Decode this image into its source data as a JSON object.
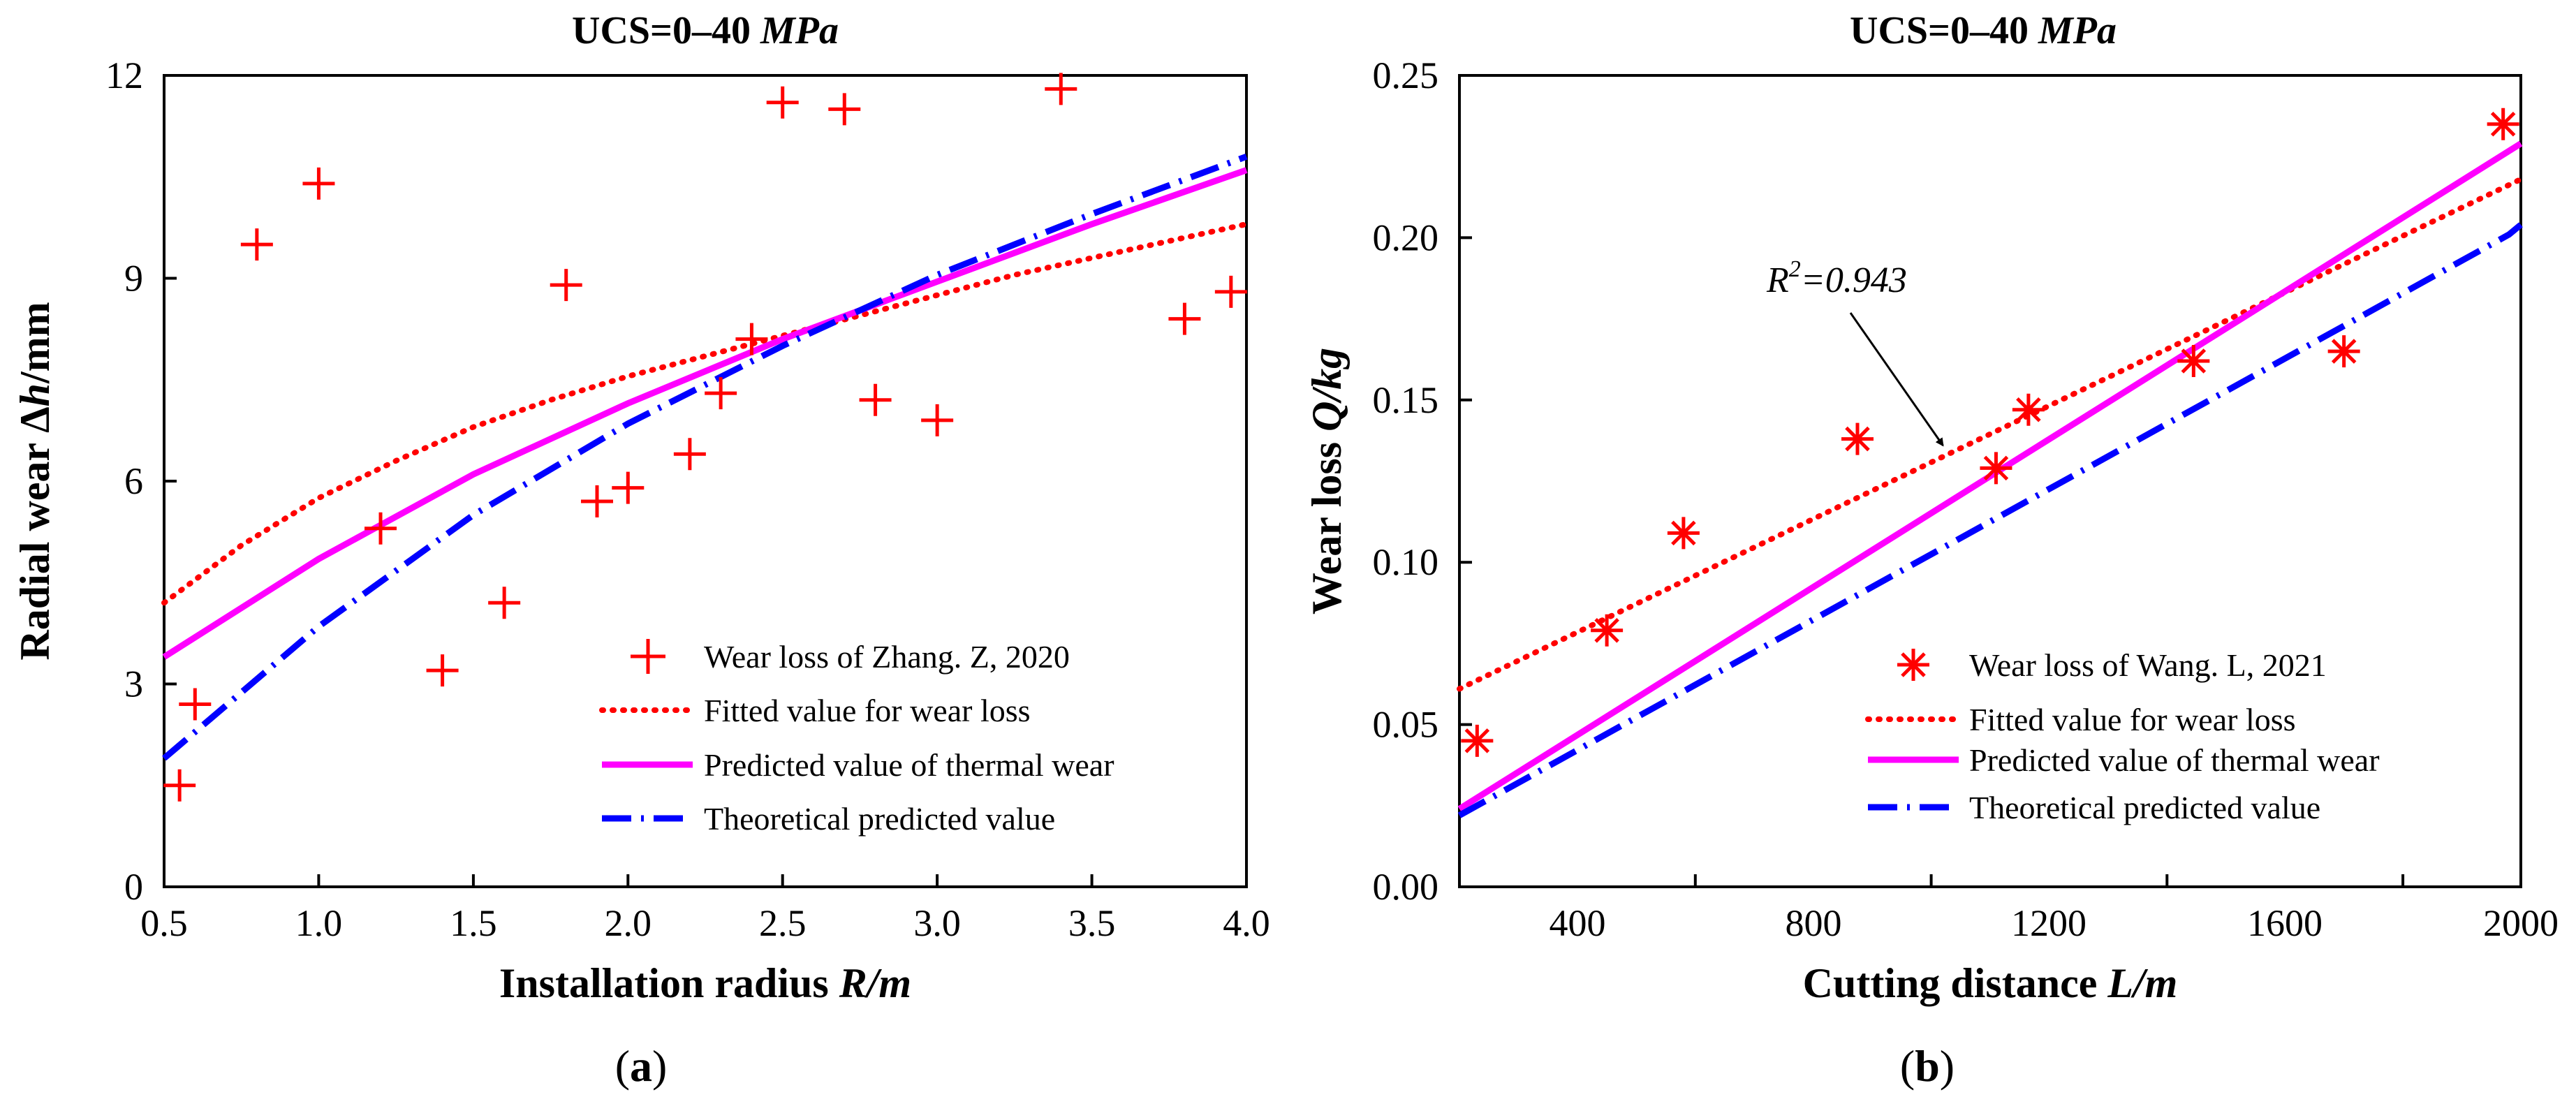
{
  "chart_data": [
    {
      "id": "a",
      "type": "scatter",
      "panel_label": "a",
      "title_prefix": "UCS=0–40 ",
      "title_unit": "MPa",
      "xlabel_main": "Installation radius",
      "xlabel_var": "R/m",
      "ylabel_main": "Radial wear Δ",
      "ylabel_var": "h",
      "ylabel_unit": "/mm",
      "xlim": [
        0.5,
        4.0
      ],
      "ylim": [
        0,
        12
      ],
      "xticks": [
        0.5,
        1.0,
        1.5,
        2.0,
        2.5,
        3.0,
        3.5,
        4.0
      ],
      "xtick_labels": [
        "0.5",
        "1.0",
        "1.5",
        "2.0",
        "2.5",
        "3.0",
        "3.5",
        "4.0"
      ],
      "yticks": [
        0,
        3,
        6,
        9,
        12
      ],
      "ytick_labels": [
        "0",
        "3",
        "6",
        "9",
        "12"
      ],
      "legend_position": "bottom-right",
      "scatter": {
        "name": "Wear loss of Zhang. Z, 2020",
        "marker": "plus",
        "color": "#ff0000",
        "x": [
          0.55,
          0.6,
          0.8,
          1.0,
          1.2,
          1.4,
          1.6,
          1.8,
          1.9,
          2.0,
          2.2,
          2.3,
          2.4,
          2.5,
          2.7,
          2.8,
          3.0,
          3.4,
          3.8,
          3.95
        ],
        "y": [
          1.5,
          2.7,
          9.5,
          10.4,
          5.3,
          3.2,
          4.2,
          8.9,
          5.7,
          5.9,
          6.4,
          7.3,
          8.1,
          11.6,
          11.5,
          7.2,
          6.9,
          11.8,
          8.4,
          8.8
        ]
      },
      "series": [
        {
          "name": "Fitted value for wear loss",
          "style": "dotted",
          "color": "#ff0000",
          "x": [
            0.5,
            0.75,
            1.0,
            1.25,
            1.5,
            1.75,
            2.0,
            2.25,
            2.5,
            2.75,
            3.0,
            3.25,
            3.5,
            3.75,
            4.0
          ],
          "y": [
            4.2,
            5.05,
            5.75,
            6.3,
            6.8,
            7.2,
            7.55,
            7.85,
            8.15,
            8.45,
            8.75,
            9.05,
            9.3,
            9.55,
            9.8
          ]
        },
        {
          "name": "Predicted value of thermal wear",
          "style": "solid",
          "color": "#ff00ff",
          "x": [
            0.5,
            1.0,
            1.5,
            2.0,
            2.5,
            3.0,
            3.5,
            4.0
          ],
          "y": [
            3.4,
            4.85,
            6.1,
            7.15,
            8.1,
            8.95,
            9.8,
            10.6
          ]
        },
        {
          "name": "Theoretical predicted value",
          "style": "dashdot",
          "color": "#0000ff",
          "x": [
            0.5,
            1.0,
            1.5,
            2.0,
            2.5,
            3.0,
            3.5,
            4.0
          ],
          "y": [
            1.9,
            3.85,
            5.5,
            6.85,
            8.0,
            9.05,
            9.95,
            10.8
          ]
        }
      ]
    },
    {
      "id": "b",
      "type": "scatter",
      "panel_label": "b",
      "title_prefix": "UCS=0–40 ",
      "title_unit": "MPa",
      "xlabel_main": "Cutting distance",
      "xlabel_var": "L/m",
      "ylabel_main": "Wear loss",
      "ylabel_var": "Q/kg",
      "xlim": [
        200,
        2000
      ],
      "ylim": [
        0,
        0.25
      ],
      "xticks": [
        400,
        800,
        1200,
        1600,
        2000
      ],
      "xtick_labels": [
        "400",
        "800",
        "1200",
        "1600",
        "2000"
      ],
      "yticks": [
        0,
        0.05,
        0.1,
        0.15,
        0.2,
        0.25
      ],
      "ytick_labels": [
        "0.00",
        "0.05",
        "0.10",
        "0.15",
        "0.20",
        "0.25"
      ],
      "legend_position": "bottom-right",
      "annotation": {
        "text_prefix": "R",
        "text_sup": "2",
        "text_suffix": "=0.943",
        "target_x": 1020,
        "target_y": 0.136
      },
      "scatter": {
        "name": "Wear loss of Wang. L, 2021",
        "marker": "asterisk",
        "color": "#ff0000",
        "x": [
          230,
          450,
          580,
          875,
          1110,
          1165,
          1445,
          1700,
          1970
        ],
        "y": [
          0.045,
          0.079,
          0.109,
          0.138,
          0.129,
          0.147,
          0.162,
          0.165,
          0.235
        ]
      },
      "series": [
        {
          "name": "Fitted value for wear loss",
          "style": "dotted",
          "color": "#ff0000",
          "x": [
            200,
            2000
          ],
          "y": [
            0.061,
            0.218
          ]
        },
        {
          "name": "Predicted value of thermal wear",
          "style": "solid",
          "color": "#ff00ff",
          "x": [
            200,
            2000
          ],
          "y": [
            0.024,
            0.229
          ]
        },
        {
          "name": "Theoretical predicted value",
          "style": "dashdot",
          "color": "#0000ff",
          "x": [
            200,
            1980,
            2000
          ],
          "y": [
            0.022,
            0.201,
            0.204
          ]
        }
      ]
    }
  ]
}
